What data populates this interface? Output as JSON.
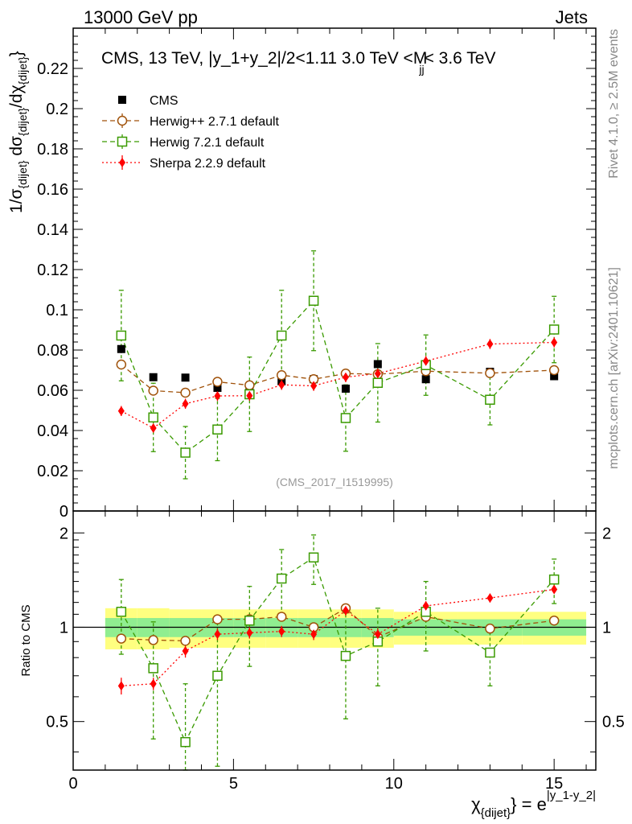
{
  "header": {
    "left": "13000 GeV pp",
    "right": "Jets"
  },
  "side_text": {
    "rivet": "Rivet 4.1.0, ≥ 2.5M events",
    "mcplots": "mcplots.cern.ch [arXiv:2401.10621]"
  },
  "analysis_tag": "(CMS_2017_I1519995)",
  "colors": {
    "cms": "#000000",
    "herwigpp": "#a0520a",
    "herwig7": "#3a9a00",
    "sherpa": "#ff0000",
    "band_inner": "#90ee90",
    "band_outer": "#ffff80"
  },
  "chart_data": [
    {
      "type": "scatter",
      "panel": "main",
      "title": "CMS, 13 TeV, |y_1+y_2|/2<1.11 3.0 TeV <M_jj< 3.6 TeV",
      "title_parts": {
        "main": "CMS, 13 TeV, |y_1+y_2|/2<1.11 3.0 TeV <M",
        "sub": "jj",
        "tail": "< 3.6 TeV"
      },
      "ylabel": "1/σ_{dijet} dσ_{dijet}/dχ_{dijet}",
      "ylabel_parts": {
        "a": "1/σ",
        "a_sub": "{dijet}",
        "b": " dσ",
        "b_sub": "{dijet}",
        "c": "/dχ",
        "c_sub": "{dijet}",
        "close": "}"
      },
      "xlim": [
        0,
        16.3
      ],
      "ylim": [
        0,
        0.24
      ],
      "yticks": [
        "0",
        "0.02",
        "0.04",
        "0.06",
        "0.08",
        "0.1",
        "0.12",
        "0.14",
        "0.16",
        "0.18",
        "0.2",
        "0.22"
      ],
      "ytick_values": [
        0,
        0.02,
        0.04,
        0.06,
        0.08,
        0.1,
        0.12,
        0.14,
        0.16,
        0.18,
        0.2,
        0.22
      ],
      "legend": [
        {
          "key": "cms",
          "label": "CMS"
        },
        {
          "key": "herwigpp",
          "label": "Herwig++ 2.7.1 default"
        },
        {
          "key": "herwig7",
          "label": "Herwig 7.2.1 default"
        },
        {
          "key": "sherpa",
          "label": "Sherpa 2.2.9 default"
        }
      ],
      "x": [
        1.5,
        2.5,
        3.5,
        4.5,
        5.5,
        6.5,
        7.5,
        8.5,
        9.5,
        11,
        13,
        15
      ],
      "x_edges": [
        1,
        2,
        3,
        4,
        5,
        6,
        7,
        8,
        9,
        10,
        12,
        14,
        16
      ],
      "series": [
        {
          "key": "cms",
          "name": "CMS",
          "marker": "square-filled",
          "values": [
            0.0805,
            0.0665,
            0.0663,
            0.0612,
            0.0595,
            0.0645,
            0.0655,
            0.0608,
            0.073,
            0.0655,
            0.0692,
            0.067
          ],
          "errors": [
            0.002,
            0.0015,
            0.0015,
            0.0015,
            0.0015,
            0.0015,
            0.0015,
            0.0015,
            0.0015,
            0.0015,
            0.0015,
            0.0015
          ]
        },
        {
          "key": "herwigpp",
          "name": "Herwig++ 2.7.1 default",
          "marker": "circle-open",
          "values": [
            0.0728,
            0.0598,
            0.0588,
            0.0642,
            0.0625,
            0.0675,
            0.0655,
            0.0683,
            0.068,
            0.0695,
            0.0685,
            0.07
          ],
          "errors": [
            0.0012,
            0.0012,
            0.0012,
            0.0012,
            0.0012,
            0.0012,
            0.0012,
            0.0012,
            0.0012,
            0.0012,
            0.0012,
            0.0012
          ]
        },
        {
          "key": "herwig7",
          "name": "Herwig 7.2.1 default",
          "marker": "square-open",
          "values": [
            0.0872,
            0.0465,
            0.029,
            0.0405,
            0.058,
            0.0872,
            0.1045,
            0.0462,
            0.0637,
            0.0725,
            0.0553,
            0.0902
          ],
          "errors": [
            0.0225,
            0.017,
            0.013,
            0.0155,
            0.0185,
            0.0225,
            0.0248,
            0.0165,
            0.0195,
            0.015,
            0.0125,
            0.0165
          ]
        },
        {
          "key": "sherpa",
          "name": "Sherpa 2.2.9 default",
          "marker": "diamond-filled",
          "values": [
            0.0497,
            0.0412,
            0.0533,
            0.0572,
            0.0573,
            0.0627,
            0.0622,
            0.0665,
            0.0683,
            0.0745,
            0.083,
            0.0838
          ],
          "errors": [
            0.0025,
            0.0022,
            0.0025,
            0.0025,
            0.0025,
            0.0025,
            0.0025,
            0.0025,
            0.0025,
            0.0025,
            0.0025,
            0.0025
          ]
        }
      ]
    },
    {
      "type": "scatter",
      "panel": "ratio",
      "ylabel": "Ratio to CMS",
      "xlabel": "χ_{dijet} = e^{|y_1-y_2|}",
      "xlabel_parts": {
        "chi": "χ",
        "chi_sub": "{dijet}",
        "close": "} = e",
        "exp": "|y_1-y_2|"
      },
      "xlim": [
        0,
        16.3
      ],
      "ylim": [
        0.35,
        2.35
      ],
      "xticks": [
        "0",
        "5",
        "10",
        "15"
      ],
      "xtick_values": [
        0,
        5,
        10,
        15
      ],
      "yticks": [
        "0.5",
        "1",
        "2"
      ],
      "ytick_values": [
        0.5,
        1,
        2
      ],
      "band": {
        "x_edges": [
          1,
          2,
          3,
          4,
          5,
          6,
          7,
          8,
          9,
          10,
          12,
          14,
          16
        ],
        "inner_half": [
          0.07,
          0.07,
          0.07,
          0.07,
          0.07,
          0.07,
          0.07,
          0.07,
          0.07,
          0.06,
          0.06,
          0.06
        ],
        "outer_half": [
          0.15,
          0.15,
          0.14,
          0.14,
          0.14,
          0.14,
          0.14,
          0.14,
          0.14,
          0.12,
          0.12,
          0.12
        ]
      },
      "series": [
        {
          "key": "herwigpp",
          "values": [
            0.92,
            0.91,
            0.905,
            1.06,
            1.06,
            1.08,
            1.0,
            1.15,
            0.93,
            1.08,
            0.99,
            1.05
          ],
          "errors": [
            0.03,
            0.03,
            0.03,
            0.03,
            0.03,
            0.03,
            0.03,
            0.03,
            0.03,
            0.03,
            0.03,
            0.03
          ]
        },
        {
          "key": "herwig7",
          "values": [
            1.12,
            0.74,
            0.43,
            0.7,
            1.05,
            1.43,
            1.67,
            0.81,
            0.9,
            1.12,
            0.83,
            1.42
          ],
          "errors": [
            0.3,
            0.3,
            0.23,
            0.34,
            0.3,
            0.34,
            0.3,
            0.3,
            0.25,
            0.28,
            0.18,
            0.23
          ]
        },
        {
          "key": "sherpa",
          "values": [
            0.65,
            0.66,
            0.84,
            0.95,
            0.96,
            0.97,
            0.95,
            1.13,
            0.95,
            1.17,
            1.24,
            1.32
          ],
          "errors": [
            0.04,
            0.03,
            0.04,
            0.04,
            0.04,
            0.04,
            0.04,
            0.04,
            0.04,
            0.04,
            0.04,
            0.04
          ]
        }
      ]
    }
  ]
}
